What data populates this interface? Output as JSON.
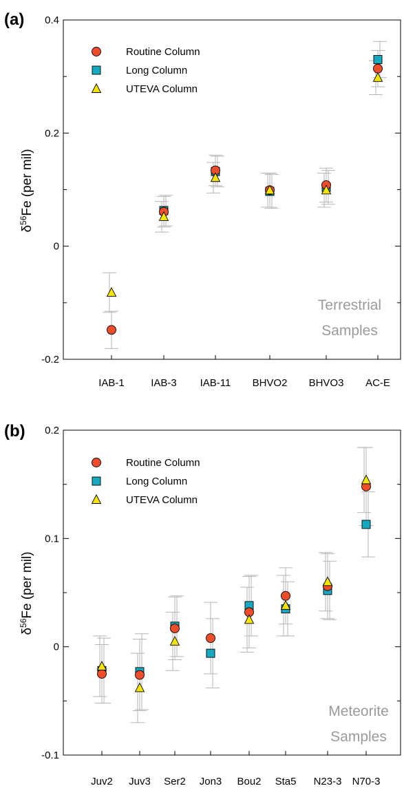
{
  "chart_data": [
    {
      "type": "scatter",
      "panel_label": "(a)",
      "ylabel_prefix": "δ",
      "ylabel_sup": "56",
      "ylabel_suffix": "Fe (per mil)",
      "ylim": [
        -0.2,
        0.4
      ],
      "yticks": [
        "-0.2",
        "0",
        "0.2",
        "0.4"
      ],
      "categories": [
        "IAB-1",
        "IAB-3",
        "IAB-11",
        "BHVO2",
        "BHVO3",
        "AC-E"
      ],
      "annotation": [
        "Terrestrial",
        "Samples"
      ],
      "legend_position": "top-left",
      "grid": false,
      "series": [
        {
          "name": "Routine Column",
          "marker": "circle",
          "color": "#ee4d2c",
          "values": [
            -0.148,
            0.061,
            0.134,
            0.099,
            0.108,
            0.314
          ],
          "errors": [
            0.033,
            0.027,
            0.027,
            0.03,
            0.03,
            0.032
          ]
        },
        {
          "name": "Long Column",
          "marker": "square",
          "color": "#17a9c2",
          "values": [
            null,
            0.063,
            0.132,
            0.097,
            0.104,
            0.33
          ],
          "errors": [
            0,
            0.027,
            0.027,
            0.03,
            0.03,
            0.032
          ]
        },
        {
          "name": "UTEVA Column",
          "marker": "triangle",
          "color": "#f6e500",
          "values": [
            -0.082,
            0.052,
            0.121,
            0.099,
            0.099,
            0.298
          ],
          "errors": [
            0.035,
            0.027,
            0.027,
            0.03,
            0.03,
            0.03
          ]
        }
      ]
    },
    {
      "type": "scatter",
      "panel_label": "(b)",
      "ylabel_prefix": "δ",
      "ylabel_sup": "56",
      "ylabel_suffix": "Fe (per mil)",
      "ylim": [
        -0.1,
        0.2
      ],
      "yticks": [
        "-0.1",
        "0",
        "0.1",
        "0.2"
      ],
      "categories": [
        "Juv2",
        "Juv3",
        "Ser2",
        "Jon3",
        "Bou2",
        "Sta5",
        "N23-3",
        "N70-3"
      ],
      "annotation": [
        "Meteorite",
        "Samples"
      ],
      "legend_position": "top-left",
      "grid": false,
      "series": [
        {
          "name": "Routine Column",
          "marker": "circle",
          "color": "#ee4d2c",
          "values": [
            -0.025,
            -0.026,
            0.017,
            0.008,
            0.032,
            0.047,
            0.056,
            0.148
          ],
          "errors": [
            0.027,
            0.033,
            0.029,
            0.033,
            0.033,
            0.026,
            0.03,
            0.036
          ]
        },
        {
          "name": "Long Column",
          "marker": "square",
          "color": "#17a9c2",
          "values": [
            -0.022,
            -0.023,
            0.019,
            -0.006,
            0.038,
            0.035,
            0.052,
            0.113
          ],
          "errors": [
            0.03,
            0.035,
            0.028,
            0.032,
            0.028,
            0.025,
            0.027,
            0.03
          ]
        },
        {
          "name": "UTEVA Column",
          "marker": "triangle",
          "color": "#f6e500",
          "values": [
            -0.018,
            -0.038,
            0.005,
            null,
            0.025,
            0.038,
            0.06,
            0.154
          ],
          "errors": [
            0.028,
            0.032,
            0.027,
            0,
            0.03,
            0.028,
            0.027,
            0.03
          ]
        }
      ]
    }
  ]
}
